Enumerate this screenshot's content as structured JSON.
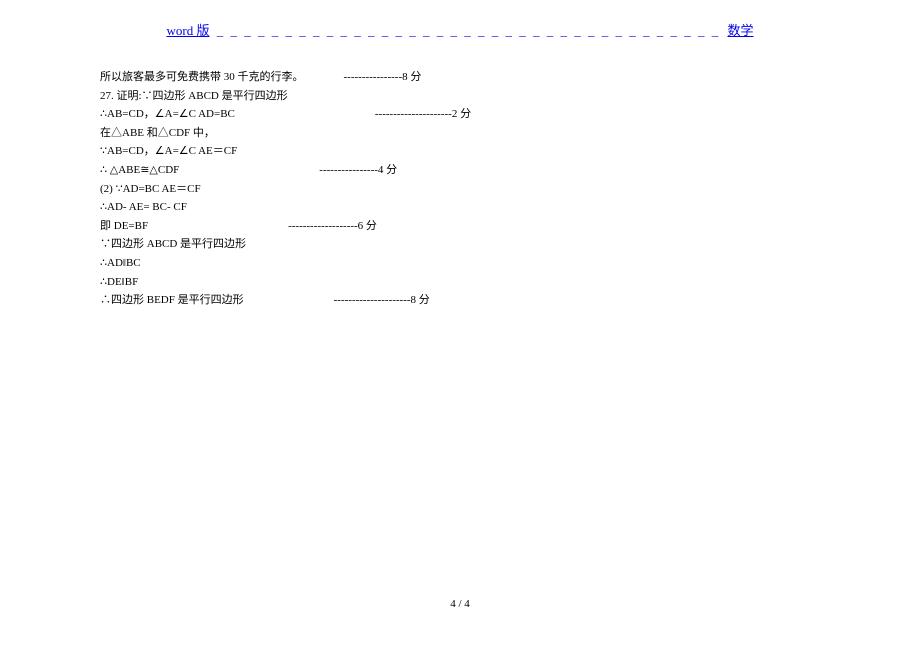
{
  "header": {
    "left_link": "word 版",
    "dashes": "_ _ _ _ _ _ _ _ _ _ _ _ _ _ _ _ _ _ _ _ _ _ _ _ _ _ _ _ _ _ _ _ _ _ _ _ _",
    "right_link": "数学",
    "link_color": "#0000ee"
  },
  "lines": [
    {
      "text": "所以旅客最多可免费携带 30 千克的行李。",
      "score": "----------------8 分",
      "gap": "gap-small"
    },
    {
      "text": "27.  证明:∵四边形 ABCD 是平行四边形",
      "score": "",
      "gap": ""
    },
    {
      "text": "∴AB=CD，∠A=∠C      AD=BC",
      "score": "---------------------2 分",
      "gap": "gap-large"
    },
    {
      "text": "在△ABE 和△CDF 中，",
      "score": "",
      "gap": ""
    },
    {
      "text": "∵AB=CD，∠A=∠C    AE＝CF",
      "score": "",
      "gap": ""
    },
    {
      "text": "∴ △ABE≅△CDF",
      "score": "----------------4 分",
      "gap": "gap-large"
    },
    {
      "text": "(2) ∵AD=BC       AE＝CF",
      "score": "",
      "gap": ""
    },
    {
      "text": "∴AD- AE= BC- CF",
      "score": "",
      "gap": ""
    },
    {
      "text": "即 DE=BF",
      "score": "-------------------6 分",
      "gap": "gap-large"
    },
    {
      "text": "∵四边形 ABCD 是平行四边形",
      "score": "",
      "gap": ""
    },
    {
      "text": "∴AD‖BC",
      "score": "",
      "gap": ""
    },
    {
      "text": "∴DE‖BF",
      "score": "",
      "gap": ""
    },
    {
      "text": "∴四边形 BEDF 是平行四边形",
      "score": "---------------------8 分",
      "gap": "gap-med"
    }
  ],
  "footer": {
    "page": "4  / 4"
  }
}
